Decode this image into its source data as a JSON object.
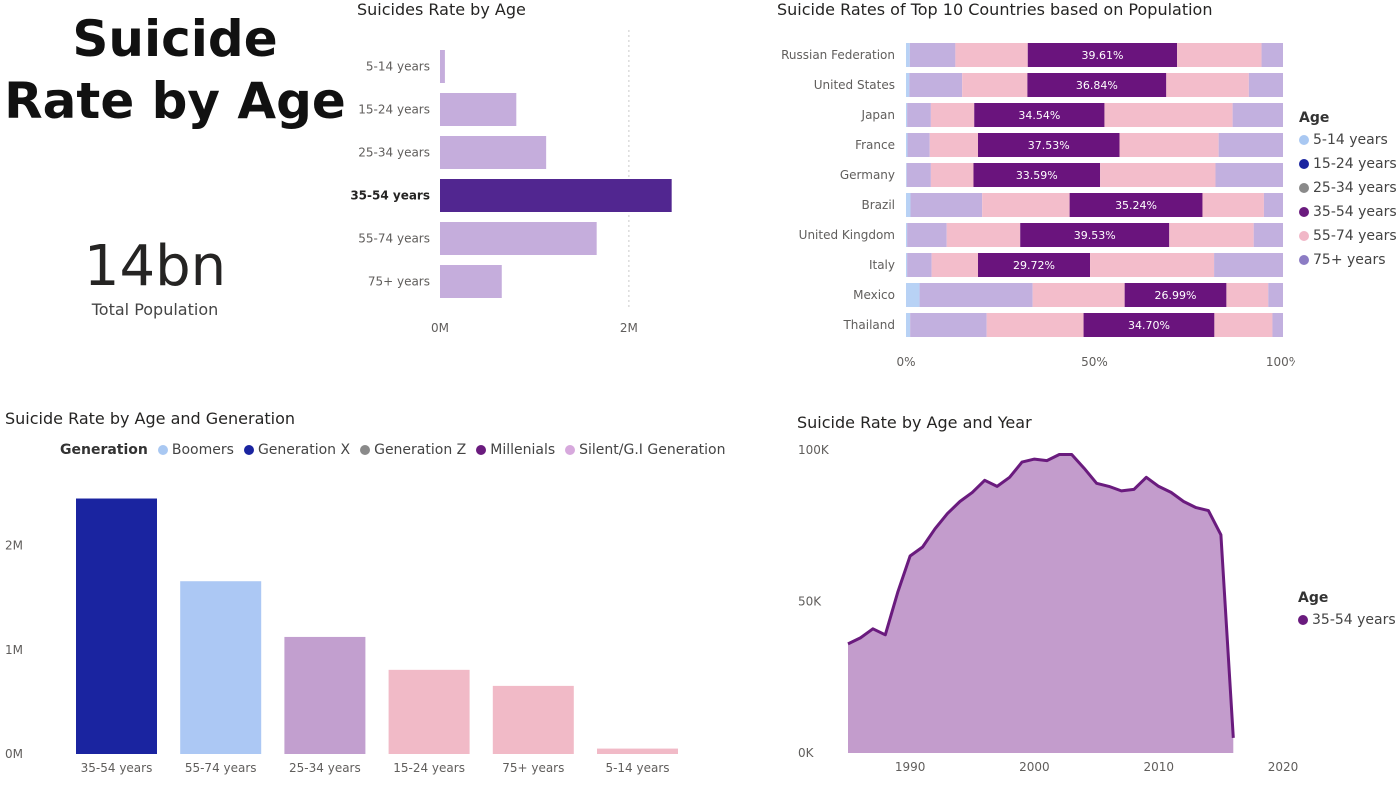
{
  "title_lines": [
    "Suicide",
    "Rate by Age"
  ],
  "kpi": {
    "value": "14bn",
    "label": "Total Population"
  },
  "colors": {
    "age_5_14": "#a9c8f2",
    "age_15_24": "#1a24a0",
    "age_25_34": "#8a8a8a",
    "age_35_54": "#6a1b7e",
    "age_55_74": "#f1b7c7",
    "age_75_plus": "#8c7cc4",
    "bar_light": "#c5addc",
    "bar_highlight": "#512690"
  },
  "chart_data": [
    {
      "id": "age_bars",
      "type": "bar",
      "orientation": "horizontal",
      "title": "Suicides Rate by Age",
      "categories": [
        "5-14 years",
        "15-24 years",
        "25-34 years",
        "35-54 years",
        "55-74 years",
        "75+ years"
      ],
      "values": [
        52000,
        808000,
        1124000,
        2453000,
        1659000,
        654000
      ],
      "highlighted": "35-54 years",
      "xlim": [
        0,
        2700000
      ],
      "xticks": [
        {
          "value": 0,
          "label": "0M"
        },
        {
          "value": 2000000,
          "label": "2M"
        }
      ],
      "grid": "vertical dashed"
    },
    {
      "id": "country_stack",
      "type": "bar",
      "stacked": "100%",
      "orientation": "horizontal",
      "title": "Suicide Rates of Top 10 Countries based on Population",
      "categories": [
        "Russian Federation",
        "United States",
        "Japan",
        "France",
        "Germany",
        "Brazil",
        "United Kingdom",
        "Italy",
        "Mexico",
        "Thailand"
      ],
      "series": [
        {
          "name": "5-14 years",
          "values": [
            1.0,
            0.9,
            0.3,
            0.4,
            0.2,
            1.2,
            0.3,
            0.3,
            3.6,
            1.1
          ]
        },
        {
          "name": "75+ years",
          "values": [
            12.1,
            14.0,
            6.3,
            5.9,
            6.4,
            19.0,
            10.5,
            6.5,
            30.0,
            20.3
          ]
        },
        {
          "name": "55-74 years",
          "values": [
            19.2,
            17.3,
            11.5,
            12.8,
            11.3,
            23.2,
            19.5,
            12.3,
            24.4,
            25.7
          ]
        },
        {
          "name": "35-54 years",
          "values": [
            39.61,
            36.84,
            34.54,
            37.53,
            33.59,
            35.24,
            39.53,
            29.72,
            26.99,
            34.7
          ]
        },
        {
          "name": "25-34 years",
          "values": [
            22.4,
            21.9,
            34.0,
            26.3,
            30.6,
            16.3,
            22.4,
            32.9,
            11.1,
            15.4
          ]
        },
        {
          "name": "15-24 years",
          "values": [
            5.69,
            9.06,
            13.36,
            17.07,
            17.91,
            5.06,
            7.77,
            18.28,
            3.91,
            2.8
          ]
        }
      ],
      "data_labels_series": "35-54 years",
      "data_labels": [
        "39.61%",
        "36.84%",
        "34.54%",
        "37.53%",
        "33.59%",
        "35.24%",
        "39.53%",
        "29.72%",
        "26.99%",
        "34.70%"
      ],
      "xticks": [
        "0%",
        "50%",
        "100%"
      ],
      "legend": {
        "title": "Age",
        "placement": "right",
        "entries": [
          "5-14 years",
          "15-24 years",
          "25-34 years",
          "35-54 years",
          "55-74 years",
          "75+ years"
        ]
      }
    },
    {
      "id": "generation_bars",
      "type": "bar",
      "orientation": "vertical",
      "title": "Suicide Rate by Age and Generation",
      "categories": [
        "35-54 years",
        "55-74 years",
        "25-34 years",
        "15-24 years",
        "75+ years",
        "5-14 years"
      ],
      "values": [
        2453000,
        1659000,
        1124000,
        808000,
        654000,
        52000
      ],
      "bar_colors": [
        "#1a24a0",
        "#acc8f4",
        "#c29fcf",
        "#f1bac7",
        "#f1bac7",
        "#f1bac7"
      ],
      "ylim": [
        0,
        2650000
      ],
      "yticks": [
        {
          "value": 0,
          "label": "0M"
        },
        {
          "value": 1000000,
          "label": "1M"
        },
        {
          "value": 2000000,
          "label": "2M"
        }
      ],
      "legend": {
        "title": "Generation",
        "placement": "top",
        "entries": [
          "Boomers",
          "Generation X",
          "Generation Z",
          "Millenials",
          "Silent/G.I Generation"
        ],
        "colors": [
          "#a9c8f2",
          "#1a24a0",
          "#8a8a8a",
          "#6a1b7e",
          "#d7a9dd"
        ]
      }
    },
    {
      "id": "year_area",
      "type": "area",
      "title": "Suicide Rate by Age and Year",
      "series": [
        {
          "name": "35-54 years",
          "x": [
            1985,
            1986,
            1987,
            1988,
            1989,
            1990,
            1991,
            1992,
            1993,
            1994,
            1995,
            1996,
            1997,
            1998,
            1999,
            2000,
            2001,
            2002,
            2003,
            2004,
            2005,
            2006,
            2007,
            2008,
            2009,
            2010,
            2011,
            2012,
            2013,
            2014,
            2015,
            2016
          ],
          "y": [
            36000,
            38000,
            41000,
            39000,
            53000,
            65000,
            68000,
            74000,
            79000,
            83000,
            86000,
            90000,
            88000,
            91000,
            96000,
            97000,
            96500,
            98500,
            98500,
            94000,
            89000,
            88000,
            86500,
            87000,
            91000,
            88000,
            86000,
            83000,
            81000,
            80000,
            72000,
            5000
          ]
        }
      ],
      "xlim": [
        1985,
        2020
      ],
      "ylim": [
        0,
        100000
      ],
      "xticks": [
        "1990",
        "2000",
        "2010",
        "2020"
      ],
      "yticks": [
        "0K",
        "50K",
        "100K"
      ],
      "legend": {
        "title": "Age",
        "placement": "right",
        "entries": [
          "35-54 years"
        ]
      }
    }
  ]
}
